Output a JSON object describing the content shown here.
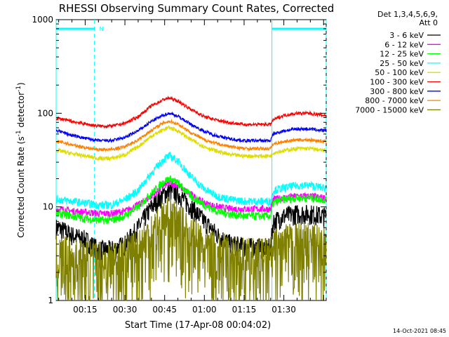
{
  "chart_data": {
    "type": "line",
    "title": "RHESSI Observing Summary Count Rates, Corrected",
    "xlabel": "Start Time (17-Apr-08 00:04:02)",
    "ylabel": "Corrected Count Rate (s",
    "ylabel_sup1": "-1",
    "ylabel_mid": " detector",
    "ylabel_sup2": "-1",
    "ylabel_end": ")",
    "x_unit": "minutes after 00:00",
    "xlim": [
      4.03,
      106
    ],
    "ylim": [
      1,
      1000
    ],
    "yscale": "log",
    "x_ticks": [
      {
        "value": 15,
        "label": "00:15"
      },
      {
        "value": 30,
        "label": "00:30"
      },
      {
        "value": 45,
        "label": "00:45"
      },
      {
        "value": 60,
        "label": "01:00"
      },
      {
        "value": 75,
        "label": "01:15"
      },
      {
        "value": 90,
        "label": "01:30"
      }
    ],
    "y_ticks": [
      {
        "value": 1,
        "label": "1"
      },
      {
        "value": 10,
        "label": "10"
      },
      {
        "value": 100,
        "label": "100"
      },
      {
        "value": 1000,
        "label": "1000"
      }
    ],
    "legend": {
      "placement": "top-right",
      "header": [
        "Det 1,3,4,5,6,9,",
        "Att 0"
      ]
    },
    "night_bars": [
      {
        "from": 4.03,
        "to": 18.5,
        "label": "N"
      },
      {
        "from": 85.5,
        "to": 106,
        "label": ""
      }
    ],
    "x": [
      5,
      10,
      15,
      20,
      25,
      30,
      35,
      40,
      45,
      47,
      50,
      55,
      60,
      65,
      70,
      75,
      80,
      85,
      86,
      90,
      95,
      100,
      105
    ],
    "series": [
      {
        "name": "3 - 6 keV",
        "color": "#000000",
        "noise": 0.5,
        "values": [
          6,
          5,
          4.5,
          3.5,
          3.5,
          4,
          6,
          10,
          14,
          15,
          14,
          10,
          7,
          5,
          4,
          3.8,
          3.7,
          3.7,
          7,
          8,
          8.5,
          8.5,
          8
        ]
      },
      {
        "name": "6 - 12 keV",
        "color": "#ff00ff",
        "noise": 0.18,
        "values": [
          9.5,
          9,
          8.8,
          8.5,
          8.5,
          9,
          10.5,
          13,
          17,
          18,
          17,
          13.5,
          11,
          10,
          9.5,
          9.5,
          9.5,
          9.5,
          12,
          12.5,
          13,
          13,
          12.5
        ]
      },
      {
        "name": "12 - 25 keV",
        "color": "#00ff00",
        "noise": 0.2,
        "values": [
          8.5,
          8,
          7.5,
          7.2,
          7.2,
          8,
          10,
          14,
          19,
          20,
          18,
          13,
          10.5,
          9,
          8.3,
          8,
          8,
          8,
          11,
          12,
          12.5,
          12.5,
          12
        ]
      },
      {
        "name": "25 - 50 keV",
        "color": "#00ffff",
        "noise": 0.2,
        "values": [
          12,
          11.5,
          11,
          10.5,
          10.5,
          12,
          15,
          23,
          33,
          35,
          31,
          21,
          15.5,
          13,
          12,
          11.5,
          11.5,
          11.5,
          15,
          16,
          17,
          17,
          16
        ]
      },
      {
        "name": "50 - 100 keV",
        "color": "#dddd00",
        "noise": 0.1,
        "values": [
          40,
          37,
          35,
          33,
          33,
          36,
          44,
          57,
          68,
          70,
          65,
          52,
          44,
          39,
          36,
          35,
          35,
          35,
          38,
          40,
          42,
          42,
          40
        ]
      },
      {
        "name": "100 - 300 keV",
        "color": "#ff0000",
        "noise": 0.08,
        "values": [
          88,
          82,
          77,
          73,
          73,
          78,
          92,
          120,
          142,
          145,
          135,
          110,
          92,
          84,
          79,
          76,
          76,
          76,
          85,
          95,
          100,
          100,
          95
        ]
      },
      {
        "name": "300 - 800 keV",
        "color": "#0000ff",
        "noise": 0.08,
        "values": [
          65,
          58,
          54,
          51,
          51,
          55,
          65,
          82,
          97,
          100,
          93,
          76,
          64,
          57,
          53,
          51,
          51,
          51,
          60,
          65,
          68,
          68,
          65
        ]
      },
      {
        "name": "800 - 7000 keV",
        "color": "#ff8000",
        "noise": 0.08,
        "values": [
          50,
          46,
          43,
          41,
          41,
          44,
          52,
          66,
          80,
          82,
          77,
          62,
          52,
          47,
          44,
          42,
          42,
          42,
          47,
          50,
          52,
          52,
          50
        ]
      },
      {
        "name": "7000 - 15000 keV",
        "color": "#808000",
        "noise": 1.6,
        "values": [
          2.8,
          2.6,
          2.5,
          2.5,
          2.5,
          2.7,
          3.5,
          5,
          6.8,
          7,
          6.3,
          4.5,
          3.5,
          3,
          2.8,
          2.6,
          2.6,
          2.6,
          3.2,
          3.6,
          3.8,
          3.8,
          3.5
        ]
      }
    ],
    "grid": false
  },
  "footer": {
    "timestamp": "14-Oct-2021 08:45"
  }
}
